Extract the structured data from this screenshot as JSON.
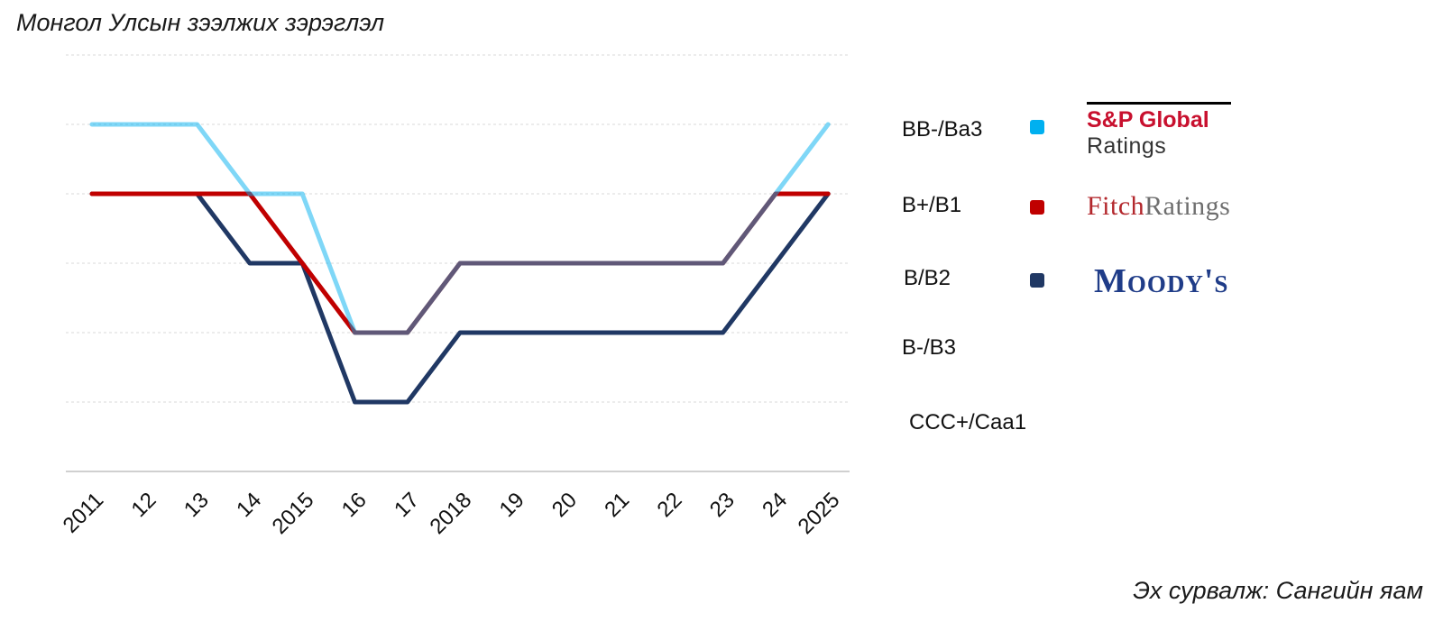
{
  "title": "Монгол Улсын зээлжих зэрэглэл",
  "source": "Эх сурвалж: Сангийн яам",
  "legend": [
    {
      "name": "S&P Global Ratings",
      "logo_main": "S&P Global",
      "logo_sub": "Ratings",
      "color": "#00b0f0"
    },
    {
      "name": "Fitch Ratings",
      "logo_main": "Fitch",
      "logo_sub": "Ratings",
      "color": "#c00000"
    },
    {
      "name": "Moody's",
      "logo_main": "Moody's",
      "color": "#203864"
    }
  ],
  "chart_data": {
    "type": "line",
    "title": "Монгол Улсын зээлжих зэрэглэл",
    "categories": [
      "2011",
      "12",
      "13",
      "14",
      "2015",
      "16",
      "17",
      "2018",
      "19",
      "20",
      "21",
      "22",
      "23",
      "24",
      "2025"
    ],
    "rating_levels": [
      "CCC+/Caa1",
      "B-/B3",
      "B/B2",
      "B+/B1",
      "BB-/Ba3"
    ],
    "y_scale": {
      "CCC+/Caa1": 1,
      "B-/B3": 2,
      "B/B2": 3,
      "B+/B1": 4,
      "BB-/Ba3": 5
    },
    "ylim": [
      0,
      6
    ],
    "series": [
      {
        "name": "S&P Global Ratings",
        "color": "#00b0f0",
        "opacity": 0.5,
        "values": [
          5,
          5,
          5,
          4,
          4,
          2,
          2,
          3,
          3,
          3,
          3,
          3,
          3,
          4,
          5
        ]
      },
      {
        "name": "Fitch Ratings",
        "color": "#c00000",
        "opacity": 1,
        "values": [
          4,
          4,
          4,
          4,
          3,
          2,
          2,
          3,
          3,
          3,
          3,
          3,
          3,
          4,
          4
        ]
      },
      {
        "name": "Moody's",
        "color": "#203864",
        "opacity": 1,
        "values": [
          4,
          4,
          4,
          3,
          3,
          1,
          1,
          2,
          2,
          2,
          2,
          2,
          2,
          3,
          4
        ]
      }
    ]
  }
}
